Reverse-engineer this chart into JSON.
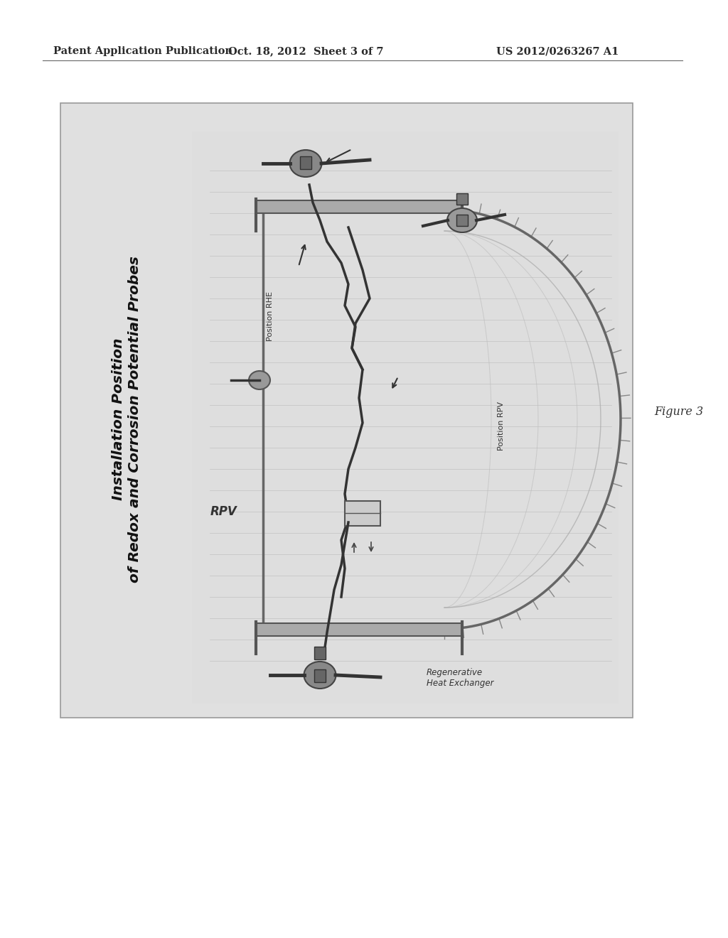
{
  "bg_color": "#ffffff",
  "header_left": "Patent Application Publication",
  "header_center": "Oct. 18, 2012  Sheet 3 of 7",
  "header_right": "US 2012/0263267 A1",
  "header_fontsize": 10.5,
  "header_color": "#2a2a2a",
  "figure_label": "Figure 3",
  "diagram_bg": "#e0e0e0",
  "inner_bg": "#f0f0f0",
  "title_line1": "Installation Position",
  "title_line2": "of Redox and Corrosion Potential Probes",
  "label_RPV": "RPV",
  "label_pos_RHE": "Position RHE",
  "label_pos_RPV": "Position RPV",
  "label_regen": "Regenerative\nHeat Exchanger",
  "vessel_color": "#666666",
  "line_color": "#333333",
  "grid_color": "#bbbbbb",
  "probe_color": "#777777"
}
